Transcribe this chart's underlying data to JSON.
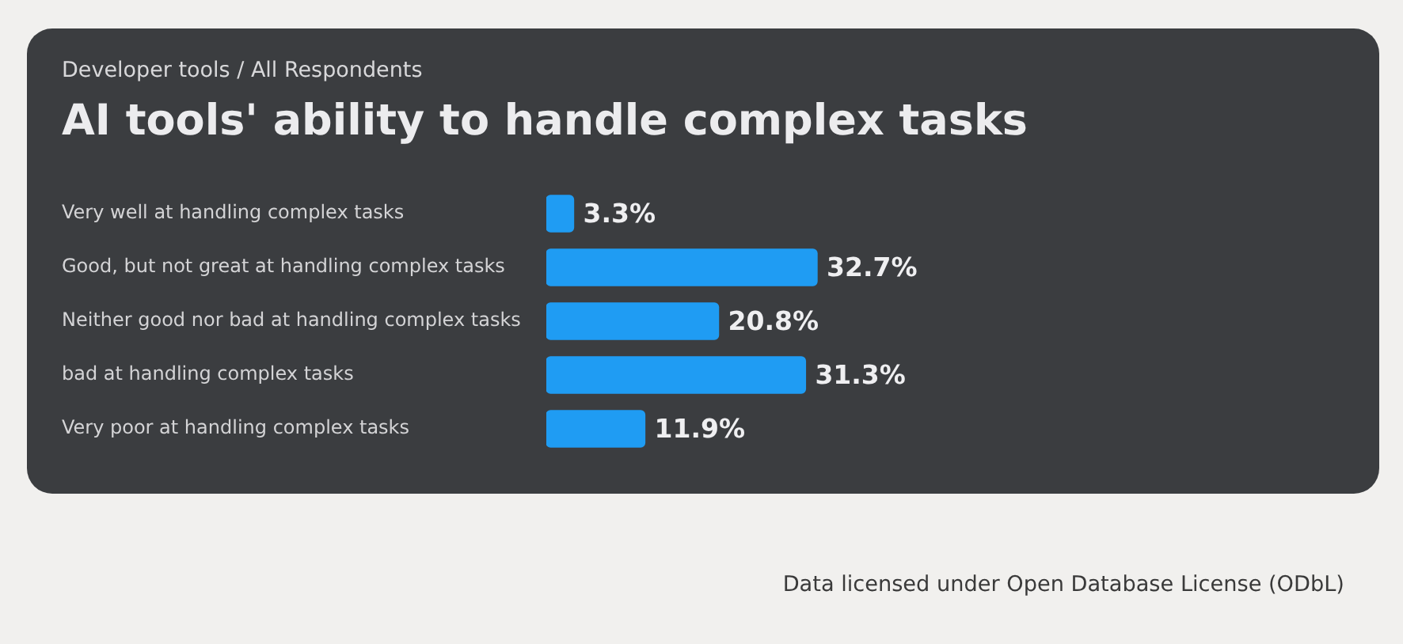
{
  "chart_data": {
    "type": "bar",
    "orientation": "horizontal",
    "subtitle": "Developer tools / All Respondents",
    "title": "AI tools' ability to handle complex tasks",
    "categories": [
      "Very well at handling complex tasks",
      "Good, but not great at handling complex tasks",
      "Neither good nor bad at handling complex tasks",
      "bad at handling complex tasks",
      "Very poor at handling complex tasks"
    ],
    "values": [
      3.3,
      32.7,
      20.8,
      31.3,
      11.9
    ],
    "value_labels": [
      "3.3%",
      "32.7%",
      "20.8%",
      "31.3%",
      "11.9%"
    ],
    "color": "#1f9cf3",
    "xlim": [
      0,
      100
    ],
    "tick_labels": "y",
    "annotations": [
      "Data licensed under Open Database License (ODbL)"
    ]
  }
}
